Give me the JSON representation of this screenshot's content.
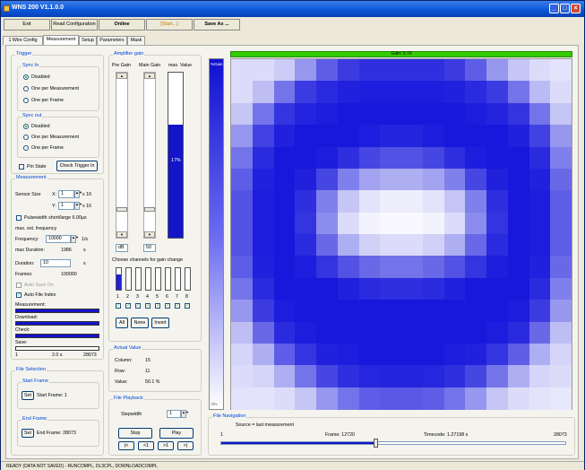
{
  "window": {
    "title": "WNS 200 V1.1.0.0"
  },
  "toolbar": {
    "exit": "Exit",
    "read_config": "Read Configuration",
    "online": "Online",
    "start": "[Start...]",
    "save_as": "Save As ..."
  },
  "tabs": [
    "1 Wire Config",
    "Measurement",
    "Setup",
    "Parameters",
    "Mask"
  ],
  "trigger": {
    "title": "Trigger",
    "sync_in": {
      "title": "Sync In",
      "options": [
        "Disabled",
        "One per Measurement",
        "One per Frame"
      ],
      "selected": 0
    },
    "sync_out": {
      "title": "Sync out",
      "options": [
        "Disabled",
        "One per Measurement",
        "One per Frame"
      ],
      "selected": 0
    },
    "pin_state": "Pin State",
    "check_trigger": "Check Trigger In"
  },
  "measurement": {
    "title": "Measurement",
    "sensor_size": "Sensor Size",
    "x_label": "X:",
    "x_value": "1",
    "y_label": "Y:",
    "y_value": "1",
    "x16a": "x 16",
    "x16b": "x 16",
    "pulse_width": "Pulsewidth short/large 6.00µs",
    "max_freq": "max. ext. frequency",
    "frequency_label": "Frequency:",
    "frequency_value": "10000",
    "frequency_unit": "1/s",
    "max_duration_label": "max Duration:",
    "max_duration_value": "1986",
    "max_duration_unit": "s",
    "duration_label": "Duration:",
    "duration_value": "10",
    "duration_unit": "s",
    "frames_label": "Frames:",
    "frames_value": "100000",
    "auto_save": "Auto Save On",
    "auto_file_index": "Auto File Index",
    "measurement_lbl": "Measurement:",
    "download_lbl": "Download:",
    "check_lbl": "Check:",
    "save_lbl": "Save:",
    "scale_start": "1",
    "scale_mid": "2.0 s",
    "scale_end": "28073"
  },
  "amp_gain": {
    "title": "Amplifier gain",
    "pre_gain": "Pre Gain",
    "main_gain": "Main Gain",
    "max_value": "max. Value",
    "pre_value": "dB",
    "main_value": "50",
    "max_percent": "17%",
    "channels_title": "Choose channels for gain change",
    "channels": [
      "1",
      "2",
      "3",
      "4",
      "5",
      "6",
      "7",
      "8"
    ],
    "all": "All",
    "none": "None",
    "invert": "Invert"
  },
  "actual_value": {
    "title": "Actual Value",
    "column_label": "Column:",
    "column_value": "15",
    "row_label": "Row:",
    "row_value": "11",
    "value_label": "Value:",
    "value_value": "50.1 %"
  },
  "file_playback": {
    "title": "File Playback",
    "stepwidth_label": "Stepwidth",
    "stepwidth_value": "1",
    "stop": "Stop",
    "play": "Play",
    "nav": [
      "|<",
      "<1",
      ">1",
      ">|"
    ]
  },
  "file_selection": {
    "title": "File Selection",
    "start_frame": "Start Frame",
    "set1": "Set",
    "start_frame_value": "Start Frame: 1",
    "end_frame": "End Frame",
    "set2": "Set",
    "end_frame_value": "End Frame: 28073"
  },
  "colorbar": {
    "top": "%Gain",
    "bottom": "0%"
  },
  "gain_bar": "Gain: 0.70",
  "file_navigation": {
    "title": "File Navigation",
    "source": "Source = last measurement",
    "start": "1",
    "frame": "Frame: 12720",
    "timecode": "Timecode: 1.27198 s",
    "end": "28073",
    "position_fraction": 0.45
  },
  "status": "READY (DATA NOT SAVED) - RUNCOMPL, DL3CPL, DOWNLOADCOMPL",
  "heatmap": {
    "cols": 16,
    "rows": 16,
    "values": [
      [
        0.15,
        0.15,
        0.22,
        0.45,
        0.7,
        0.85,
        0.9,
        0.9,
        0.9,
        0.9,
        0.85,
        0.7,
        0.45,
        0.25,
        0.15,
        0.12
      ],
      [
        0.15,
        0.28,
        0.6,
        0.85,
        0.92,
        0.96,
        0.98,
        0.98,
        0.98,
        0.98,
        0.96,
        0.92,
        0.85,
        0.6,
        0.3,
        0.15
      ],
      [
        0.25,
        0.6,
        0.88,
        0.95,
        0.98,
        1.0,
        1.0,
        1.0,
        1.0,
        1.0,
        1.0,
        0.98,
        0.95,
        0.88,
        0.6,
        0.25
      ],
      [
        0.45,
        0.82,
        0.96,
        1.0,
        1.0,
        1.0,
        0.98,
        0.95,
        0.95,
        0.98,
        1.0,
        1.0,
        1.0,
        0.96,
        0.82,
        0.45
      ],
      [
        0.6,
        0.92,
        1.0,
        1.0,
        0.98,
        0.9,
        0.8,
        0.75,
        0.75,
        0.8,
        0.9,
        0.98,
        1.0,
        1.0,
        0.92,
        0.55
      ],
      [
        0.7,
        0.96,
        1.0,
        0.96,
        0.8,
        0.55,
        0.4,
        0.35,
        0.35,
        0.4,
        0.55,
        0.8,
        0.96,
        1.0,
        0.96,
        0.65
      ],
      [
        0.75,
        0.98,
        1.0,
        0.9,
        0.55,
        0.25,
        0.12,
        0.08,
        0.08,
        0.12,
        0.25,
        0.55,
        0.9,
        1.0,
        0.98,
        0.7
      ],
      [
        0.75,
        0.98,
        1.0,
        0.88,
        0.5,
        0.15,
        0.05,
        0.03,
        0.03,
        0.05,
        0.15,
        0.5,
        0.88,
        1.0,
        0.98,
        0.7
      ],
      [
        0.75,
        0.98,
        1.0,
        0.92,
        0.65,
        0.35,
        0.2,
        0.15,
        0.15,
        0.2,
        0.35,
        0.65,
        0.92,
        1.0,
        0.98,
        0.7
      ],
      [
        0.7,
        0.96,
        1.0,
        0.98,
        0.88,
        0.75,
        0.65,
        0.6,
        0.6,
        0.65,
        0.75,
        0.88,
        0.98,
        1.0,
        0.96,
        0.65
      ],
      [
        0.6,
        0.92,
        1.0,
        1.0,
        1.0,
        0.96,
        0.92,
        0.9,
        0.9,
        0.92,
        0.96,
        1.0,
        1.0,
        1.0,
        0.92,
        0.55
      ],
      [
        0.45,
        0.85,
        0.98,
        1.0,
        1.0,
        1.0,
        1.0,
        1.0,
        1.0,
        1.0,
        1.0,
        1.0,
        1.0,
        0.98,
        0.85,
        0.45
      ],
      [
        0.28,
        0.65,
        0.92,
        0.98,
        1.0,
        1.0,
        1.0,
        1.0,
        1.0,
        1.0,
        1.0,
        1.0,
        0.98,
        0.92,
        0.65,
        0.28
      ],
      [
        0.18,
        0.35,
        0.7,
        0.88,
        0.96,
        0.98,
        1.0,
        1.0,
        1.0,
        1.0,
        0.98,
        0.96,
        0.88,
        0.7,
        0.35,
        0.18
      ],
      [
        0.15,
        0.18,
        0.35,
        0.6,
        0.8,
        0.9,
        0.94,
        0.95,
        0.95,
        0.94,
        0.9,
        0.8,
        0.6,
        0.35,
        0.18,
        0.15
      ],
      [
        0.12,
        0.12,
        0.15,
        0.25,
        0.45,
        0.6,
        0.7,
        0.72,
        0.72,
        0.7,
        0.6,
        0.45,
        0.25,
        0.15,
        0.12,
        0.1
      ]
    ]
  },
  "colors": {
    "accent": "#1414c8",
    "gain_bar": "#33cc00",
    "title": "#0a55d6"
  }
}
